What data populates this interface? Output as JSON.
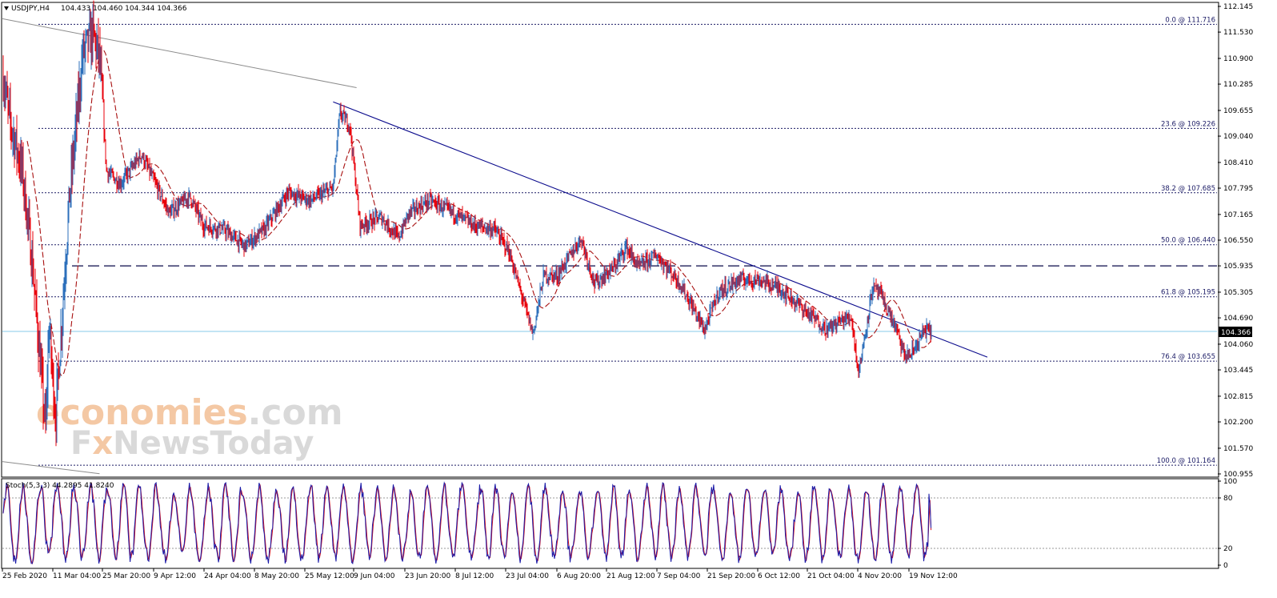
{
  "header": {
    "symbol": "USDJPY,H4",
    "ohlc": "104.433 104.460 104.344 104.366"
  },
  "watermark": {
    "line1_a": "economies",
    "line1_b": ".com",
    "line2_a": "F",
    "line2_b": "x",
    "line2_c": "NewsToday",
    "color_orange": "#f4c8a4",
    "color_gray": "#d9d9d9"
  },
  "stoch_header": "Stoch(5,3,3) 44.2895 41.8240",
  "current_price": "104.366",
  "colors": {
    "bear": "#e8000b",
    "bull": "#2c6fbb",
    "ma": "#a81010",
    "trend": "#0a0a8c",
    "fib": "#1c1c66",
    "price_line": "#87cbe8",
    "stoch_main": "#1a1aa8",
    "stoch_signal": "#d01020"
  },
  "chart_data": {
    "type": "candlestick",
    "symbol": "USDJPY",
    "timeframe": "H4",
    "ylim": [
      100.955,
      112.145
    ],
    "y_ticks": [
      "112.145",
      "111.530",
      "110.900",
      "110.285",
      "109.655",
      "109.040",
      "108.410",
      "107.795",
      "107.165",
      "106.550",
      "105.935",
      "105.305",
      "104.690",
      "104.060",
      "103.445",
      "102.815",
      "102.200",
      "101.570",
      "100.955"
    ],
    "x_ticks": [
      "25 Feb 2020",
      "11 Mar 04:00",
      "25 Mar 20:00",
      "9 Apr 12:00",
      "24 Apr 04:00",
      "8 May 20:00",
      "25 May 12:00",
      "9 Jun 04:00",
      "23 Jun 20:00",
      "8 Jul 12:00",
      "23 Jul 04:00",
      "6 Aug 20:00",
      "21 Aug 12:00",
      "7 Sep 04:00",
      "21 Sep 20:00",
      "6 Oct 12:00",
      "21 Oct 04:00",
      "4 Nov 20:00",
      "19 Nov 12:00"
    ],
    "price_path_dates": [
      "25 Feb 2020",
      "27 Feb",
      "2 Mar",
      "5 Mar",
      "9 Mar",
      "10 Mar",
      "12 Mar",
      "16 Mar",
      "20 Mar",
      "23 Mar",
      "25 Mar",
      "27 Mar",
      "31 Mar",
      "6 Apr",
      "14 Apr",
      "20 Apr",
      "24 Apr",
      "30 Apr",
      "6 May",
      "12 May",
      "20 May",
      "27 May",
      "3 Jun",
      "5 Jun",
      "8 Jun",
      "11 Jun",
      "17 Jun",
      "22 Jun",
      "25 Jun",
      "1 Jul",
      "8 Jul",
      "14 Jul",
      "20 Jul",
      "24 Jul",
      "31 Jul",
      "3 Aug",
      "7 Aug",
      "14 Aug",
      "18 Aug",
      "24 Aug",
      "28 Aug",
      "1 Sep",
      "7 Sep",
      "14 Sep",
      "21 Sep",
      "25 Sep",
      "1 Oct",
      "7 Oct",
      "13 Oct",
      "20 Oct",
      "27 Oct",
      "30 Oct",
      "3 Nov",
      "5 Nov",
      "6 Nov",
      "9 Nov",
      "11 Nov",
      "16 Nov",
      "18 Nov",
      "20 Nov",
      "24 Nov",
      "26 Nov"
    ],
    "price_path": [
      110.6,
      109.5,
      108.2,
      106.0,
      102.0,
      104.5,
      102.3,
      107.5,
      111.0,
      111.5,
      110.9,
      108.2,
      107.9,
      108.6,
      107.2,
      107.6,
      106.9,
      106.8,
      106.4,
      106.8,
      107.7,
      107.5,
      107.8,
      109.6,
      109.3,
      106.9,
      107.1,
      106.6,
      107.2,
      107.5,
      107.2,
      106.9,
      106.8,
      106.3,
      104.3,
      105.7,
      105.7,
      106.6,
      105.5,
      105.9,
      106.4,
      105.9,
      106.2,
      105.5,
      104.4,
      105.3,
      105.6,
      105.6,
      105.4,
      104.9,
      104.4,
      104.6,
      104.7,
      103.4,
      103.8,
      105.4,
      105.3,
      104.4,
      103.8,
      103.8,
      104.4,
      104.366
    ],
    "current_price": 104.366,
    "fibonacci_levels": [
      {
        "label": "0.0 @ 111.716",
        "level": 0.0,
        "price": 111.716
      },
      {
        "label": "23.6 @ 109.226",
        "level": 23.6,
        "price": 109.226
      },
      {
        "label": "38.2 @ 107.685",
        "level": 38.2,
        "price": 107.685
      },
      {
        "label": "50.0 @ 106.440",
        "level": 50.0,
        "price": 106.44
      },
      {
        "label": "61.8 @ 105.195",
        "level": 61.8,
        "price": 105.195
      },
      {
        "label": "76.4 @ 103.655",
        "level": 76.4,
        "price": 103.655
      },
      {
        "label": "100.0 @ 101.164",
        "level": 100.0,
        "price": 101.164
      }
    ],
    "support_resistance_dashed": 105.935,
    "trendlines": [
      {
        "name": "descending-resistance",
        "from": {
          "date": "3 Jun",
          "price": 109.86
        },
        "to": {
          "date": "26 Nov",
          "price": 104.27
        }
      },
      {
        "name": "upper-gray",
        "from": {
          "date": "25 Feb 2020",
          "price": 111.85
        },
        "to": {
          "date": "10 Jun",
          "price": 110.2
        }
      },
      {
        "name": "lower-gray",
        "from": {
          "date": "25 Feb 2020",
          "price": 101.25
        },
        "to": {
          "date": "25 Mar",
          "price": 100.96
        }
      }
    ],
    "stochastic": {
      "params": "5,3,3",
      "main": 44.2895,
      "signal": 41.824,
      "ylim": [
        0,
        100
      ],
      "levels": [
        20,
        80
      ],
      "ticks": [
        "100",
        "80",
        "20",
        "0"
      ]
    }
  }
}
